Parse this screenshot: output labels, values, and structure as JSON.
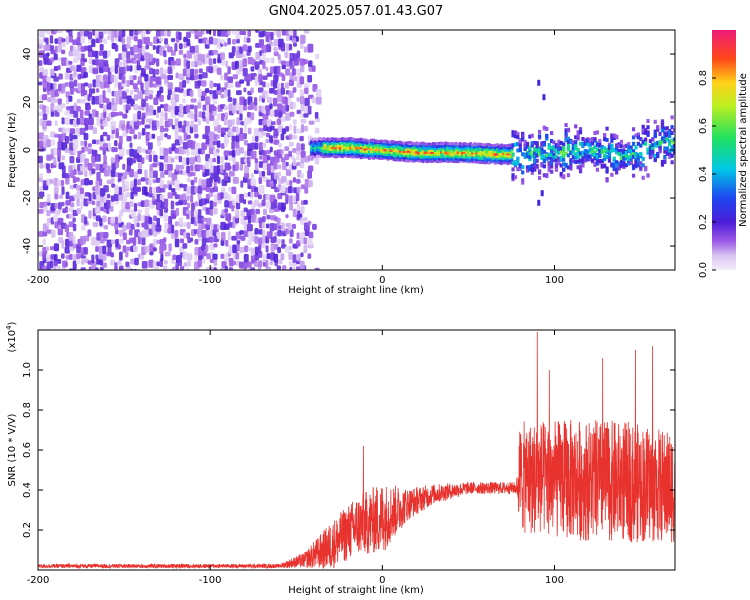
{
  "title": "GN04.2025.057.01.43.G07",
  "colors": {
    "background": "#ffffff",
    "snr_line": "#e8322e",
    "spectrogram_noise": "#7a2fe0",
    "spectrogram_peak": "#e8162e"
  },
  "chart_data": [
    {
      "type": "heatmap",
      "xlabel": "Height of straight line (km)",
      "ylabel": "Frequency (Hz)",
      "xlim": [
        -200,
        170
      ],
      "ylim": [
        -50,
        50
      ],
      "xticks": [
        -200,
        -100,
        0,
        100
      ],
      "xtick_labels": [
        "-200",
        "-100",
        "0",
        "100"
      ],
      "yticks": [
        -40,
        -20,
        0,
        20,
        40
      ],
      "ytick_labels": [
        "-40",
        "-20",
        "0",
        "20",
        "40"
      ],
      "grid": false,
      "colorbar": {
        "label": "Normalized spectral amplitude",
        "range": [
          0,
          1
        ],
        "ticks": [
          0.0,
          0.2,
          0.4,
          0.6,
          0.8
        ],
        "tick_labels": [
          "0.0",
          "0.2",
          "0.4",
          "0.6",
          "0.8"
        ],
        "colormap": "rainbow (white/lavender at 0, purple, blue, cyan, green, yellow, orange, red, magenta at 1)"
      },
      "regions": [
        {
          "x_range": [
            -200,
            -42
          ],
          "description_freq_hz": [
            -50,
            50
          ],
          "amplitude_level": 0.05
        },
        {
          "x_range": [
            -42,
            75
          ],
          "description_freq_hz": [
            -3,
            3
          ],
          "amplitude_level": 0.9
        },
        {
          "x_range": [
            75,
            170
          ],
          "description_freq_hz": [
            -10,
            10
          ],
          "amplitude_level": 0.4
        }
      ],
      "peak_track": [
        {
          "x": -40,
          "freq": 1
        },
        {
          "x": -20,
          "freq": 1
        },
        {
          "x": 0,
          "freq": 0
        },
        {
          "x": 20,
          "freq": -1
        },
        {
          "x": 40,
          "freq": -1
        },
        {
          "x": 60,
          "freq": -1.5
        },
        {
          "x": 80,
          "freq": -2
        },
        {
          "x": 100,
          "freq": -1
        },
        {
          "x": 120,
          "freq": 0
        },
        {
          "x": 140,
          "freq": -3
        },
        {
          "x": 160,
          "freq": 3
        }
      ]
    },
    {
      "type": "line",
      "xlabel": "Height of straight line (km)",
      "ylabel": "SNR (10 * V/V)",
      "y_multiplier": "(x10^4)",
      "y_multiplier_base": "(x10",
      "y_multiplier_exp": "4",
      "y_multiplier_close": ")",
      "xlim": [
        -200,
        170
      ],
      "ylim": [
        0,
        1.2
      ],
      "xticks": [
        -200,
        -100,
        0,
        100
      ],
      "xtick_labels": [
        "-200",
        "-100",
        "0",
        "100"
      ],
      "yticks": [
        0.2,
        0.4,
        0.6,
        0.8,
        1.0
      ],
      "ytick_labels": [
        "0.2",
        "0.4",
        "0.6",
        "0.8",
        "1.0"
      ],
      "grid": false,
      "series": [
        {
          "color": "#e8322e",
          "envelope": [
            {
              "x": -200,
              "base": 0.02,
              "spread": 0.01
            },
            {
              "x": -60,
              "base": 0.02,
              "spread": 0.01
            },
            {
              "x": -45,
              "base": 0.05,
              "spread": 0.04
            },
            {
              "x": -30,
              "base": 0.12,
              "spread": 0.12
            },
            {
              "x": -15,
              "base": 0.22,
              "spread": 0.15
            },
            {
              "x": 0,
              "base": 0.26,
              "spread": 0.18
            },
            {
              "x": 15,
              "base": 0.33,
              "spread": 0.08
            },
            {
              "x": 30,
              "base": 0.38,
              "spread": 0.05
            },
            {
              "x": 50,
              "base": 0.41,
              "spread": 0.03
            },
            {
              "x": 78,
              "base": 0.41,
              "spread": 0.03
            },
            {
              "x": 80,
              "base": 0.35,
              "spread": 0.35
            },
            {
              "x": 110,
              "base": 0.33,
              "spread": 0.38
            },
            {
              "x": 140,
              "base": 0.32,
              "spread": 0.38
            },
            {
              "x": 170,
              "base": 0.3,
              "spread": 0.35
            }
          ],
          "spikes": [
            {
              "x": -11,
              "y": 0.62
            },
            {
              "x": 90,
              "y": 1.19
            },
            {
              "x": 97,
              "y": 1.0
            },
            {
              "x": 128,
              "y": 1.06
            },
            {
              "x": 147,
              "y": 1.1
            },
            {
              "x": 157,
              "y": 1.12
            }
          ]
        }
      ]
    }
  ]
}
